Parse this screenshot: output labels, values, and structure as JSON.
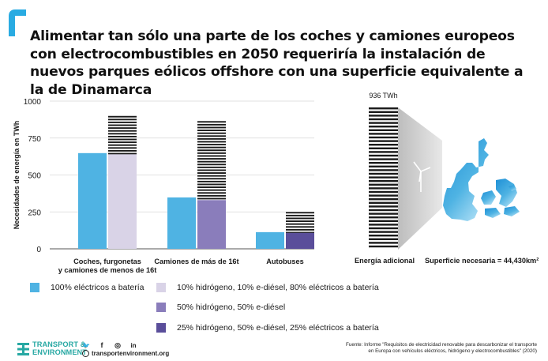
{
  "title": "Alimentar tan sólo una parte de los coches y camiones europeos con electrocombustibles en 2050 requeriría la instalación de nuevos parques eólicos offshore con una superficie equivalente a la de Dinamarca",
  "colors": {
    "accent": "#29abe2",
    "battery": "#4fb3e3",
    "mix_10_10_80": "#d9d3e7",
    "mix_50_50": "#8a7dbb",
    "mix_25_50_25": "#5a4e9a",
    "hatch": "#1a1a1a",
    "brand_teal": "#27a8a3"
  },
  "chart_data": {
    "type": "bar",
    "ylabel": "Necesidades de energía en TWh",
    "ylim": [
      0,
      1000
    ],
    "yticks": [
      0,
      250,
      500,
      750,
      1000
    ],
    "categories": [
      [
        "Coches, furgonetas",
        "y camiones de menos de 16t"
      ],
      [
        "Camiones de más de 16t"
      ],
      [
        "Autobuses"
      ]
    ],
    "series": [
      {
        "name": "100% eléctricos a batería",
        "values": [
          648,
          348,
          113
        ]
      },
      {
        "name": "10% hidrógeno, 10% e-diésel, 80% eléctricos a batería",
        "values": [
          640,
          null,
          null
        ]
      },
      {
        "name": "50% hidrógeno, 50% e-diésel",
        "values": [
          null,
          330,
          null
        ]
      },
      {
        "name": "25% hidrógeno, 50% e-diésel, 25% eléctricos a batería",
        "values": [
          null,
          null,
          108
        ]
      }
    ],
    "hatched_totals": [
      905,
      870,
      255
    ],
    "additional_energy": {
      "label": "Energía adicional",
      "value_label": "936 TWh",
      "value": 936
    },
    "surface": {
      "label": "Superficie necesaria = 44,430km²",
      "area_km2": 44430
    }
  },
  "legend": [
    {
      "label": "100% eléctricos a batería",
      "color": "#4fb3e3"
    },
    {
      "label": "10% hidrógeno, 10% e-diésel, 80% eléctricos a batería",
      "color": "#d9d3e7"
    },
    {
      "label": "50% hidrógeno, 50% e-diésel",
      "color": "#8a7dbb"
    },
    {
      "label": "25% hidrógeno, 50% e-diésel, 25% eléctricos a batería",
      "color": "#5a4e9a"
    }
  ],
  "footer": {
    "logo_line1": "TRANSPORT &",
    "logo_line2": "ENVIRONMENT",
    "social": [
      {
        "icon": "twitter-icon",
        "glyph": "🐦"
      },
      {
        "icon": "facebook-icon",
        "glyph": "f"
      },
      {
        "icon": "instagram-icon",
        "glyph": "◎"
      },
      {
        "icon": "linkedin-icon",
        "glyph": "in"
      }
    ],
    "website": "transportenvironment.org",
    "source_line1": "Fuente: Informe \"Requisitos de electricidad renovable para descarbonizar el transporte",
    "source_line2": "en Europa con vehículos eléctricos, hidrógeno y electrocombustibles\" (2020)"
  }
}
